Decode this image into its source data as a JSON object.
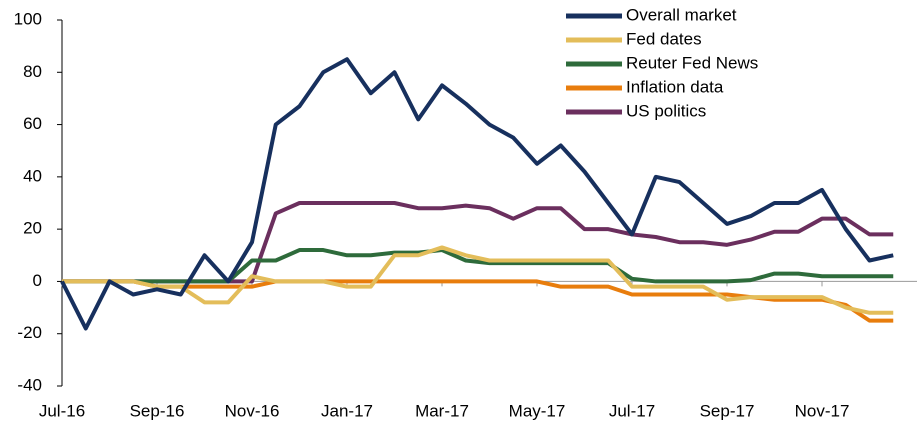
{
  "chart_data": {
    "type": "line",
    "categories": [
      "Jul-16",
      null,
      null,
      null,
      "Sep-16",
      null,
      null,
      null,
      "Nov-16",
      null,
      null,
      null,
      "Jan-17",
      null,
      null,
      null,
      "Mar-17",
      null,
      null,
      null,
      "May-17",
      null,
      null,
      null,
      "Jul-17",
      null,
      null,
      null,
      "Sep-17",
      null,
      null,
      null,
      "Nov-17",
      null,
      null,
      null
    ],
    "series": [
      {
        "name": "Overall market",
        "color": "#17305e",
        "values": [
          0,
          -18,
          0,
          -5,
          -3,
          -5,
          10,
          0,
          15,
          60,
          67,
          80,
          85,
          72,
          80,
          62,
          75,
          68,
          60,
          55,
          45,
          52,
          42,
          30,
          18,
          40,
          38,
          30,
          22,
          25,
          30,
          30,
          35,
          20,
          8,
          10
        ]
      },
      {
        "name": "Fed dates",
        "color": "#e3bd5a",
        "values": [
          0,
          0,
          0,
          0,
          -2,
          -2,
          -8,
          -8,
          2,
          0,
          0,
          0,
          -2,
          -2,
          10,
          10,
          13,
          10,
          8,
          8,
          8,
          8,
          8,
          8,
          -2,
          -2,
          -2,
          -2,
          -7,
          -6,
          -6,
          -6,
          -6,
          -10,
          -12,
          -12
        ]
      },
      {
        "name": "Reuter Fed News",
        "color": "#2e6b3b",
        "values": [
          0,
          0,
          0,
          0,
          0,
          0,
          0,
          0,
          8,
          8,
          12,
          12,
          10,
          10,
          11,
          11,
          12,
          8,
          7,
          7,
          7,
          7,
          7,
          7,
          1,
          0,
          0,
          0,
          0,
          0.5,
          3,
          3,
          2,
          2,
          2,
          2
        ]
      },
      {
        "name": "Inflation data",
        "color": "#e87d0d",
        "values": [
          0,
          0,
          0,
          0,
          -2,
          -2,
          -2,
          -2,
          -2,
          0,
          0,
          0,
          0,
          0,
          0,
          0,
          0,
          0,
          0,
          0,
          0,
          -2,
          -2,
          -2,
          -5,
          -5,
          -5,
          -5,
          -5,
          -6,
          -7,
          -7,
          -7,
          -9,
          -15,
          -15
        ]
      },
      {
        "name": "US politics",
        "color": "#6b2f5e",
        "values": [
          0,
          0,
          0,
          0,
          0,
          0,
          0,
          0,
          0,
          26,
          30,
          30,
          30,
          30,
          30,
          28,
          28,
          29,
          28,
          24,
          28,
          28,
          20,
          20,
          18,
          17,
          15,
          15,
          14,
          16,
          19,
          19,
          24,
          24,
          18,
          18
        ]
      }
    ],
    "ylim": [
      -40,
      100
    ],
    "yticks": [
      -40,
      -20,
      0,
      20,
      40,
      60,
      80,
      100
    ],
    "legend": "upper right"
  }
}
